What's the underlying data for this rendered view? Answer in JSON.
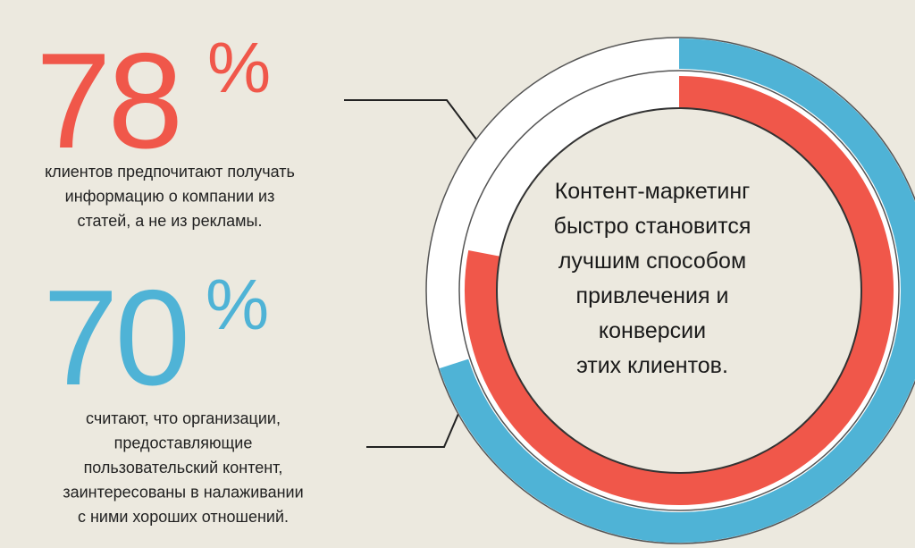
{
  "chart_data": {
    "type": "rings",
    "ylim": [
      0,
      100
    ],
    "center_text": [
      "Контент-маркетинг",
      "быстро становится",
      "лучшим способом",
      "привлечения и",
      "конверсии",
      "этих клиентов."
    ],
    "rings": [
      {
        "value": 78,
        "unit": "%",
        "color": "#f0574a",
        "text": [
          "клиентов предпочитают получать",
          "информацию о компании из",
          "статей, а не из рекламы."
        ]
      },
      {
        "value": 70,
        "unit": "%",
        "color": "#4fb3d6",
        "text": [
          "считают, что организации,",
          "предоставляющие",
          "пользовательский контент,",
          "заинтересованы в налаживании",
          "с ними хороших отношений."
        ]
      }
    ]
  }
}
